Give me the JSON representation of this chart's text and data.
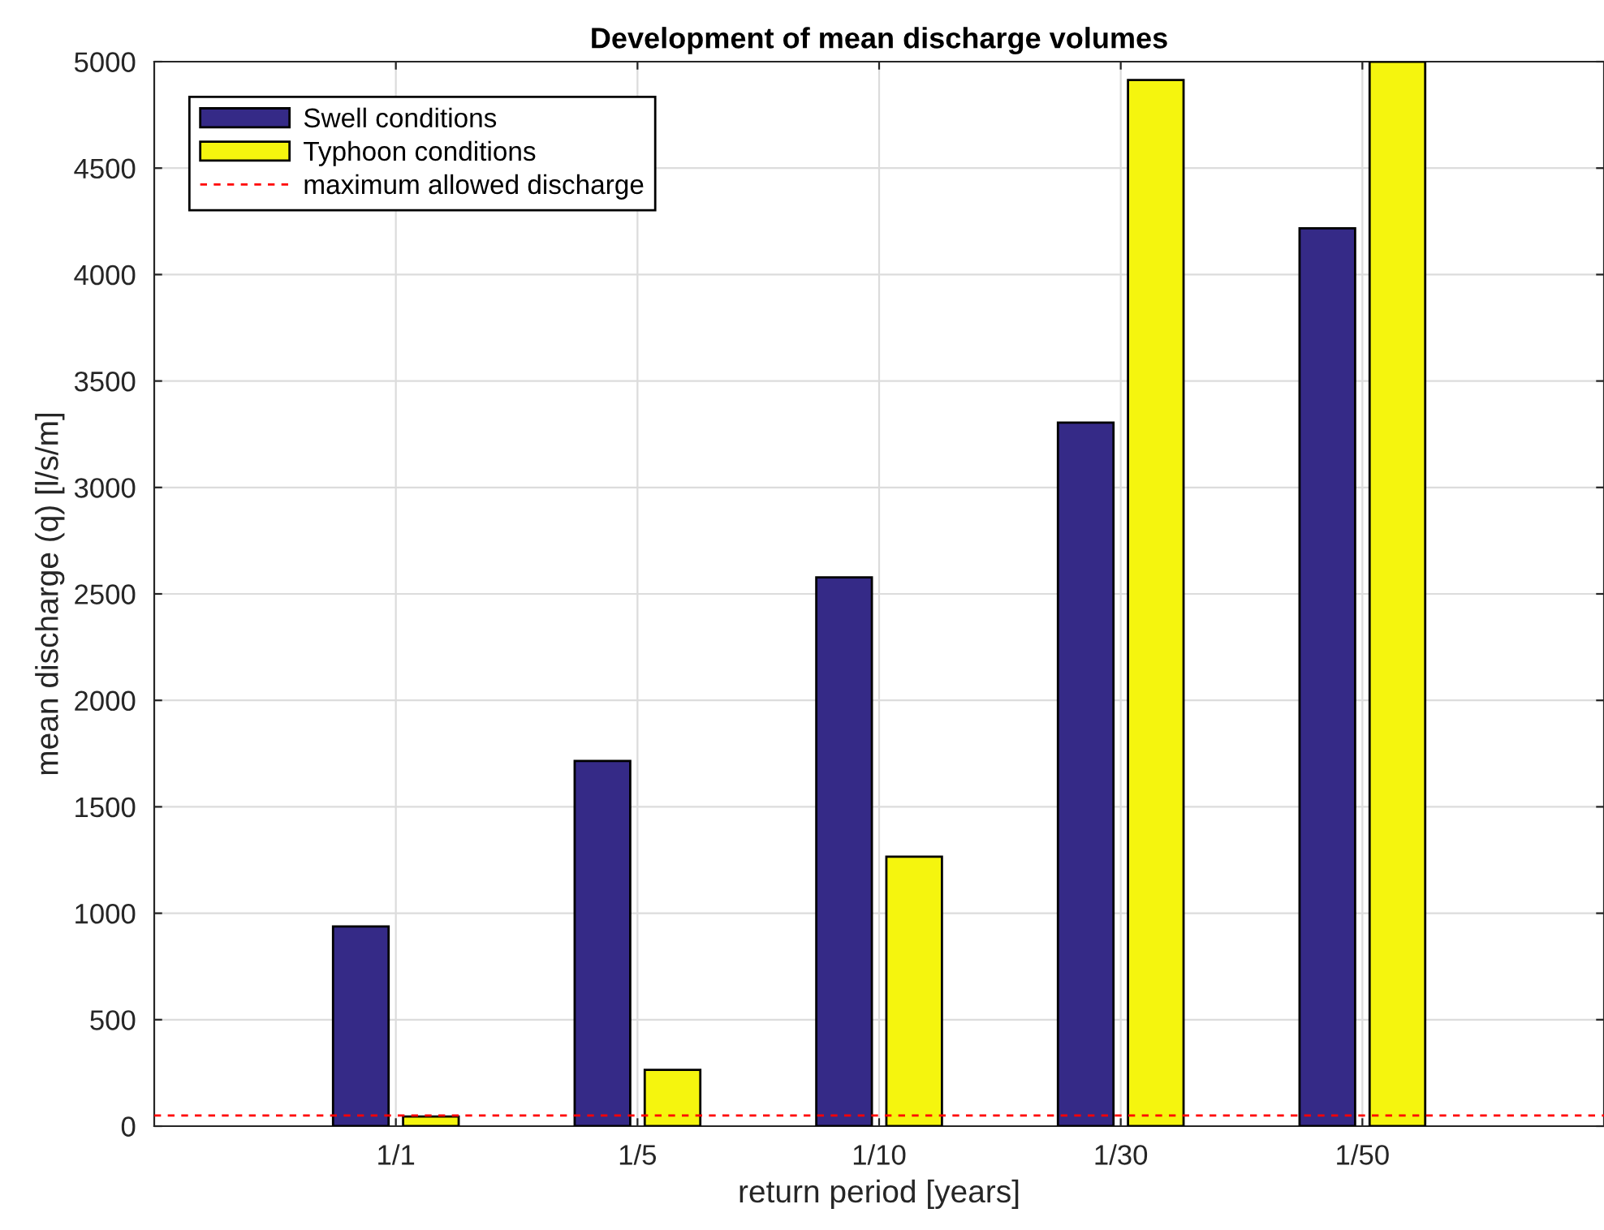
{
  "chart_data": {
    "type": "bar",
    "title": "Development of mean discharge volumes",
    "xlabel": "return period [years]",
    "ylabel": "mean discharge (q) [l/s/m]",
    "categories": [
      "1/1",
      "1/5",
      "1/10",
      "1/30",
      "1/50"
    ],
    "series": [
      {
        "name": "Swell conditions",
        "color": "#352a87",
        "values": [
          938,
          1715,
          2578,
          3305,
          4217
        ]
      },
      {
        "name": "Typhoon conditions",
        "color": "#f5f50e",
        "values": [
          45,
          264,
          1266,
          4914,
          5000
        ]
      }
    ],
    "ref_lines": [
      {
        "axis": "y",
        "value": 50,
        "label": "maximum allowed discharge",
        "color": "#ff0000",
        "line_style": "dashed"
      }
    ],
    "ylim": [
      0,
      5000
    ],
    "yticks": [
      0,
      500,
      1000,
      1500,
      2000,
      2500,
      3000,
      3500,
      4000,
      4500,
      5000
    ],
    "grid": true,
    "legend": "top left"
  }
}
